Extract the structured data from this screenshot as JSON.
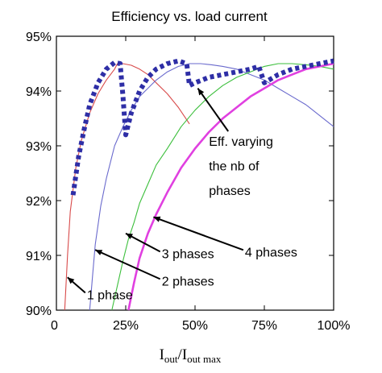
{
  "chart_data": {
    "type": "line",
    "title": "Efficiency vs. load current",
    "xlabel_main": "I",
    "xlabel_sub1": "out",
    "xlabel_mid": "/I",
    "xlabel_sub2": "out max",
    "ylabel": "",
    "xlim": [
      0,
      100
    ],
    "ylim": [
      90,
      95
    ],
    "xticks": [
      {
        "value": 0,
        "label": "0"
      },
      {
        "value": 25,
        "label": "25%"
      },
      {
        "value": 50,
        "label": "50%"
      },
      {
        "value": 75,
        "label": "75%"
      },
      {
        "value": 100,
        "label": "100%"
      }
    ],
    "yticks": [
      {
        "value": 90,
        "label": "90%"
      },
      {
        "value": 91,
        "label": "91%"
      },
      {
        "value": 92,
        "label": "92%"
      },
      {
        "value": 93,
        "label": "93%"
      },
      {
        "value": 94,
        "label": "94%"
      },
      {
        "value": 95,
        "label": "95%"
      }
    ],
    "grid": false,
    "legend": "none",
    "series": [
      {
        "color": "#d84a4a",
        "style": "thin",
        "x": [
          3,
          4,
          5,
          7,
          9,
          12,
          15,
          18,
          21,
          22,
          24,
          27,
          30,
          33,
          36,
          40,
          44,
          48
        ],
        "y": [
          90.0,
          91.0,
          91.8,
          92.6,
          93.1,
          93.6,
          93.95,
          94.2,
          94.4,
          94.5,
          94.5,
          94.47,
          94.4,
          94.3,
          94.15,
          93.95,
          93.7,
          93.4
        ]
      },
      {
        "color": "#6a6acd",
        "style": "thin",
        "x": [
          12,
          13,
          14,
          16,
          18,
          21,
          24,
          27,
          30,
          33,
          36,
          40,
          44,
          48,
          52,
          56,
          60,
          65,
          70,
          75,
          80,
          85,
          90,
          95,
          100
        ],
        "y": [
          90.0,
          90.6,
          91.2,
          91.9,
          92.4,
          93.0,
          93.35,
          93.65,
          93.9,
          94.05,
          94.2,
          94.35,
          94.45,
          94.5,
          94.5,
          94.48,
          94.45,
          94.4,
          94.3,
          94.2,
          94.05,
          93.9,
          93.75,
          93.55,
          93.35
        ]
      },
      {
        "color": "#3cbf3c",
        "style": "thin",
        "x": [
          20,
          22,
          24,
          26,
          28,
          30,
          33,
          36,
          40,
          45,
          50,
          55,
          60,
          65,
          70,
          75,
          80,
          85,
          90,
          95,
          100
        ],
        "y": [
          90.0,
          90.45,
          90.9,
          91.3,
          91.6,
          91.95,
          92.3,
          92.65,
          92.95,
          93.35,
          93.65,
          93.9,
          94.1,
          94.25,
          94.35,
          94.45,
          94.5,
          94.5,
          94.48,
          94.45,
          94.4
        ]
      },
      {
        "color": "#e040e0",
        "style": "thick",
        "x": [
          26,
          28,
          30,
          33,
          36,
          40,
          45,
          50,
          55,
          60,
          65,
          70,
          75,
          80,
          85,
          90,
          95,
          100
        ],
        "y": [
          90.0,
          90.5,
          90.95,
          91.4,
          91.75,
          92.15,
          92.6,
          92.95,
          93.25,
          93.5,
          93.7,
          93.9,
          94.05,
          94.2,
          94.3,
          94.4,
          94.45,
          94.5
        ]
      },
      {
        "color": "#2e2ea6",
        "style": "dotted",
        "x": [
          6,
          8,
          10,
          12,
          15,
          18,
          21,
          23,
          24,
          25,
          27,
          30,
          33,
          36,
          40,
          44,
          47,
          48,
          50,
          55,
          60,
          65,
          70,
          73,
          75,
          80,
          85,
          90,
          95,
          100
        ],
        "y": [
          92.1,
          92.8,
          93.3,
          93.75,
          94.15,
          94.4,
          94.52,
          94.5,
          93.9,
          93.2,
          93.6,
          94.0,
          94.25,
          94.4,
          94.5,
          94.55,
          94.5,
          94.1,
          94.15,
          94.25,
          94.3,
          94.35,
          94.4,
          94.45,
          94.15,
          94.3,
          94.4,
          94.45,
          94.5,
          94.55
        ]
      }
    ],
    "annotations": [
      {
        "text": "Eff. varying",
        "target_x": 51,
        "target_y": 94.05,
        "text_x": 55,
        "text_y": 93.0,
        "line": 1
      },
      {
        "text": "the nb of",
        "text_x": 55,
        "text_y": 92.55,
        "line": 2
      },
      {
        "text": "phases",
        "text_x": 55,
        "text_y": 92.1,
        "line": 3
      },
      {
        "text": "1 phase",
        "target_x": 4,
        "target_y": 90.6,
        "text_x": 11,
        "text_y": 90.2
      },
      {
        "text": "2 phases",
        "target_x": 14,
        "target_y": 91.1,
        "text_x": 38,
        "text_y": 90.45
      },
      {
        "text": "3 phases",
        "target_x": 25,
        "target_y": 91.4,
        "text_x": 38,
        "text_y": 90.95
      },
      {
        "text": "4 phases",
        "target_x": 35,
        "target_y": 91.7,
        "text_x": 68,
        "text_y": 90.98
      }
    ]
  }
}
